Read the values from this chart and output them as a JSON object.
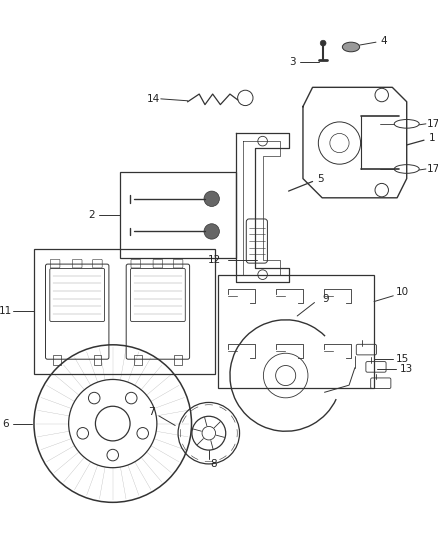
{
  "background_color": "#ffffff",
  "line_color": "#333333",
  "label_color": "#222222",
  "fig_width": 4.38,
  "fig_height": 5.33,
  "dpi": 100,
  "label_fontsize": 7.5
}
